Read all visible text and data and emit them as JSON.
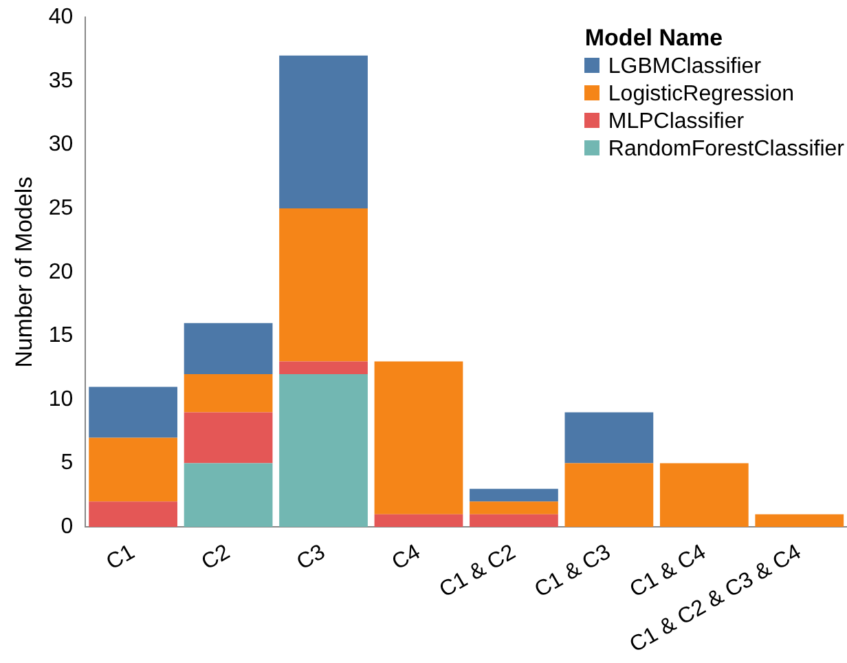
{
  "chart_data": {
    "type": "bar",
    "ylabel": "Number of Models",
    "legend_title": "Model Name",
    "stacked": true,
    "legend": "top right",
    "categories": [
      "C1",
      "C2",
      "C3",
      "C4",
      "C1 & C2",
      "C1 & C3",
      "C1 & C4",
      "C1 & C2 & C3 & C4"
    ],
    "series": [
      {
        "name": "RandomForestClassifier",
        "color": "#72b7b2",
        "values": [
          0,
          5,
          12,
          0,
          0,
          0,
          0,
          0
        ]
      },
      {
        "name": "MLPClassifier",
        "color": "#e45756",
        "values": [
          2,
          4,
          1,
          1,
          1,
          0,
          0,
          0
        ]
      },
      {
        "name": "LogisticRegression",
        "color": "#f58518",
        "values": [
          5,
          3,
          12,
          12,
          1,
          5,
          5,
          1
        ]
      },
      {
        "name": "LGBMClassifier",
        "color": "#4c78a8",
        "values": [
          4,
          4,
          12,
          0,
          1,
          4,
          0,
          0
        ]
      }
    ],
    "ylim": [
      0,
      40
    ],
    "yticks": [
      0,
      5,
      10,
      15,
      20,
      25,
      30,
      35,
      40
    ],
    "grid": false
  }
}
